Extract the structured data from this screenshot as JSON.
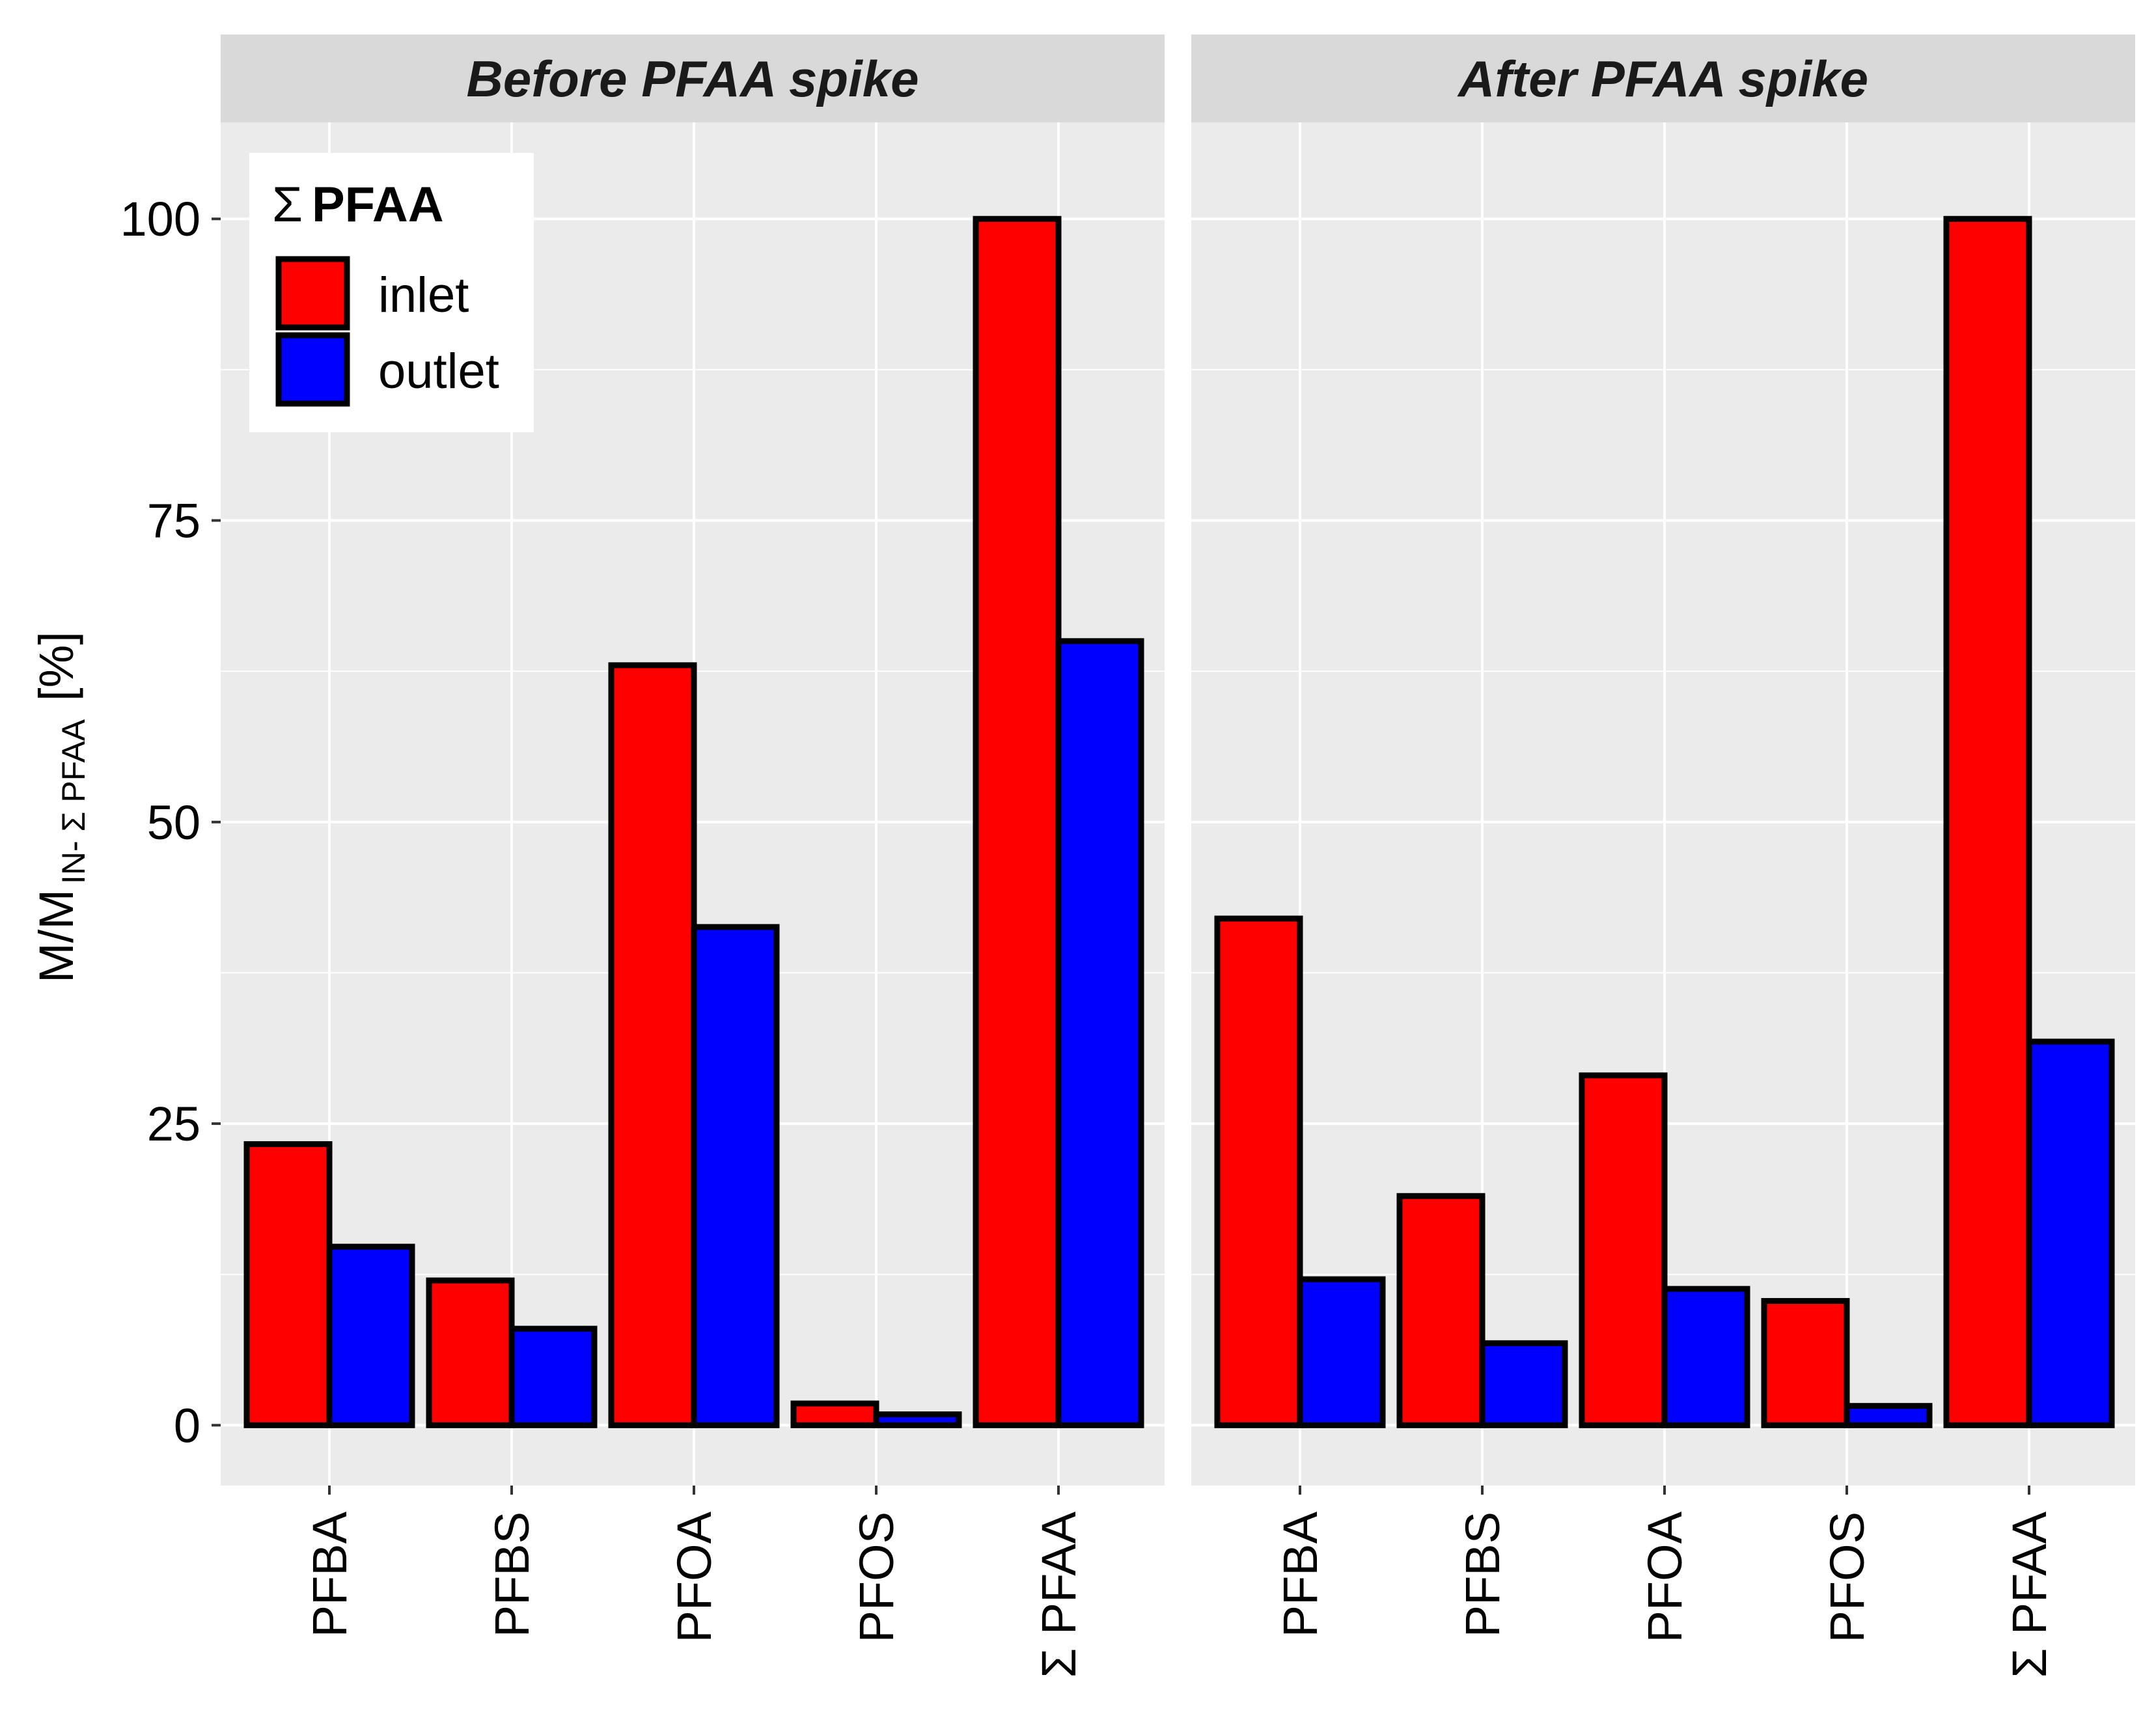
{
  "chart_data": {
    "type": "bar",
    "ylabel": {
      "main": "M/M",
      "subscript": "IN- Σ PFAA",
      "unit": "[%]"
    },
    "ylim": [
      -5,
      108
    ],
    "y_ticks": [
      "0",
      "25",
      "50",
      "75",
      "100"
    ],
    "legend": {
      "title_symbol": "Σ",
      "title": "PFAA",
      "position": "top-left",
      "entries": [
        {
          "name": "inlet",
          "color": "#ff0000"
        },
        {
          "name": "outlet",
          "color": "#0000ff"
        }
      ]
    },
    "categories": [
      "PFBA",
      "PFBS",
      "PFOA",
      "PFOS",
      "Σ PFAA"
    ],
    "facets": [
      {
        "title": "Before PFAA spike",
        "series": [
          {
            "name": "inlet",
            "values": [
              23.3,
              12.0,
              63.0,
              1.8,
              100
            ]
          },
          {
            "name": "outlet",
            "values": [
              14.8,
              8.0,
              41.3,
              0.9,
              65.0
            ]
          }
        ]
      },
      {
        "title": "After PFAA spike",
        "series": [
          {
            "name": "inlet",
            "values": [
              42.0,
              19.0,
              29.0,
              10.3,
              100
            ]
          },
          {
            "name": "outlet",
            "values": [
              12.1,
              6.8,
              11.3,
              1.6,
              31.8
            ]
          }
        ]
      }
    ]
  }
}
